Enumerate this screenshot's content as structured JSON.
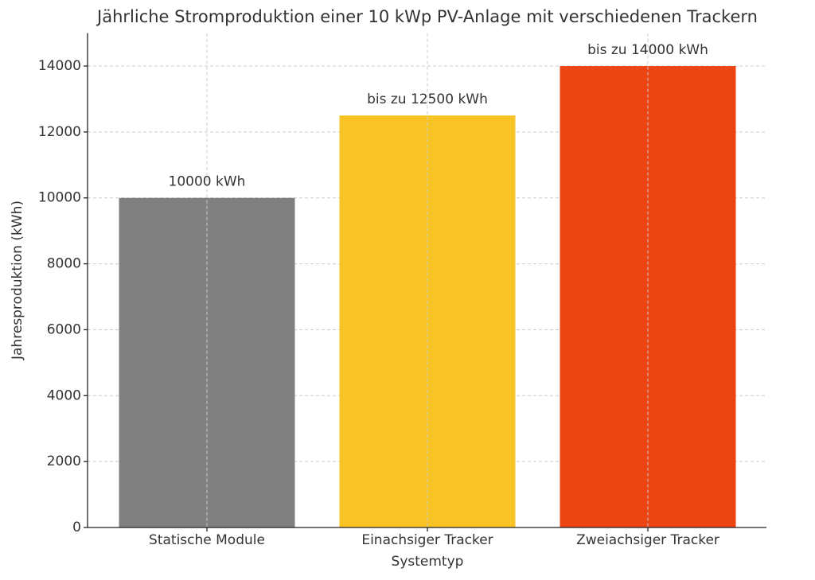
{
  "chart_data": {
    "type": "bar",
    "title": "Jährliche Stromproduktion einer 10 kWp PV-Anlage mit verschiedenen Trackern",
    "x_label": "Systemtyp",
    "y_label": "Jahresproduktion (kWh)",
    "categories": [
      "Statische Module",
      "Einachsiger Tracker",
      "Zweiachsiger Tracker"
    ],
    "values": [
      10000,
      12500,
      14000
    ],
    "value_labels": [
      "10000 kWh",
      "bis zu 12500 kWh",
      "bis zu 14000 kWh"
    ],
    "colors": [
      "#808080",
      "#f7c325",
      "#ec4413"
    ],
    "ylim": [
      0,
      15000
    ],
    "yticks": [
      0,
      2000,
      4000,
      6000,
      8000,
      10000,
      12000,
      14000
    ],
    "grid": true
  }
}
